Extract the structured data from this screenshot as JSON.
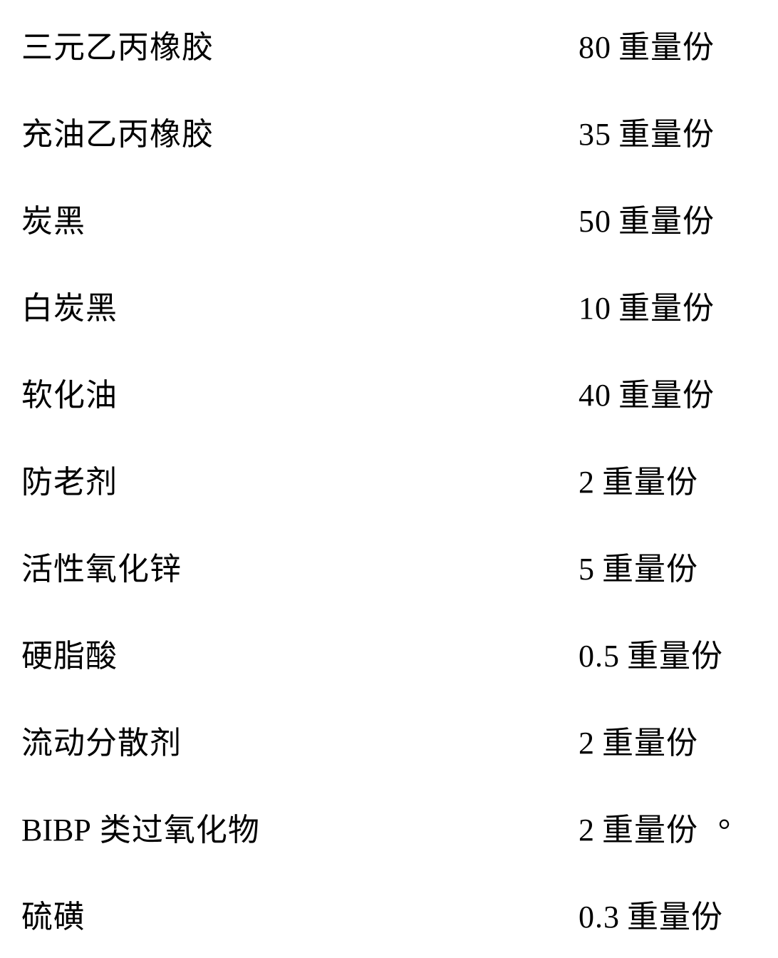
{
  "table": {
    "rows": [
      {
        "label": "三元乙丙橡胶",
        "value": "80",
        "unit": "重量份"
      },
      {
        "label": "充油乙丙橡胶",
        "value": "35",
        "unit": "重量份"
      },
      {
        "label": "炭黑",
        "value": "50",
        "unit": "重量份"
      },
      {
        "label": "白炭黑",
        "value": "10",
        "unit": "重量份"
      },
      {
        "label": "软化油",
        "value": "40",
        "unit": "重量份"
      },
      {
        "label": "防老剂",
        "value": "2",
        "unit": "重量份"
      },
      {
        "label": "活性氧化锌",
        "value": "5",
        "unit": "重量份"
      },
      {
        "label": "硬脂酸",
        "value": "0.5",
        "unit": "重量份"
      },
      {
        "label": "流动分散剂",
        "value": "2",
        "unit": "重量份"
      },
      {
        "label_prefix": "BIBP",
        "label": " 类过氧化物",
        "value": "2",
        "unit": "重量份"
      },
      {
        "label": "硫磺",
        "value": "0.3",
        "unit": "重量份"
      }
    ]
  },
  "styling": {
    "background_color": "#ffffff",
    "text_color": "#000000",
    "font_size": 44,
    "row_spacing": 58,
    "font_family_cjk": "SimSun",
    "font_family_latin": "Times New Roman"
  },
  "terminator": "。"
}
